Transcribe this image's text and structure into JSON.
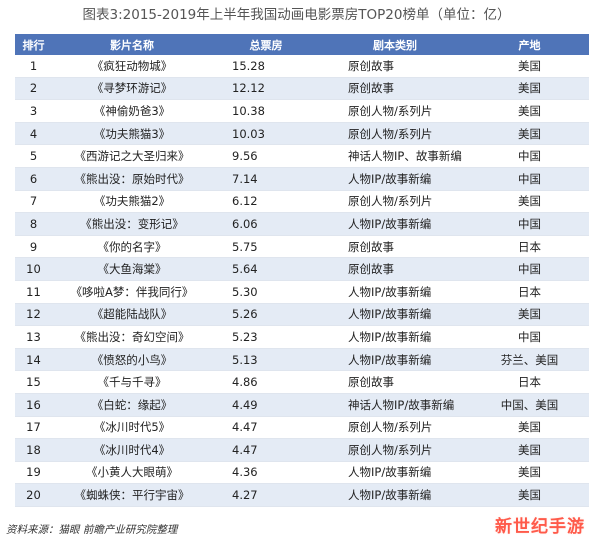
{
  "title": "图表3:2015-2019年上半年我国动画电影票房TOP20榜单（单位：亿）",
  "table": {
    "headers": [
      "排行",
      "影片名称",
      "总票房",
      "剧本类别",
      "产地"
    ],
    "rows": [
      {
        "rank": "1",
        "film": "《疯狂动物城》",
        "box": "15.28",
        "genre": "原创故事",
        "origin": "美国"
      },
      {
        "rank": "2",
        "film": "《寻梦环游记》",
        "box": "12.12",
        "genre": "原创故事",
        "origin": "美国"
      },
      {
        "rank": "3",
        "film": "《神偷奶爸3》",
        "box": "10.38",
        "genre": "原创人物/系列片",
        "origin": "美国"
      },
      {
        "rank": "4",
        "film": "《功夫熊猫3》",
        "box": "10.03",
        "genre": "原创人物/系列片",
        "origin": "美国"
      },
      {
        "rank": "5",
        "film": "《西游记之大圣归来》",
        "box": "9.56",
        "genre": "神话人物IP、故事新编",
        "origin": "中国"
      },
      {
        "rank": "6",
        "film": "《熊出没：原始时代》",
        "box": "7.14",
        "genre": "人物IP/故事新编",
        "origin": "中国"
      },
      {
        "rank": "7",
        "film": "《功夫熊猫2》",
        "box": "6.12",
        "genre": "原创人物/系列片",
        "origin": "美国"
      },
      {
        "rank": "8",
        "film": "《熊出没：变形记》",
        "box": "6.06",
        "genre": "人物IP/故事新编",
        "origin": "中国"
      },
      {
        "rank": "9",
        "film": "《你的名字》",
        "box": "5.75",
        "genre": "原创故事",
        "origin": "日本"
      },
      {
        "rank": "10",
        "film": "《大鱼海棠》",
        "box": "5.64",
        "genre": "原创故事",
        "origin": "中国"
      },
      {
        "rank": "11",
        "film": "《哆啦A梦：伴我同行》",
        "box": "5.30",
        "genre": "人物IP/故事新编",
        "origin": "日本"
      },
      {
        "rank": "12",
        "film": "《超能陆战队》",
        "box": "5.26",
        "genre": "人物IP/故事新编",
        "origin": "美国"
      },
      {
        "rank": "13",
        "film": "《熊出没：奇幻空间》",
        "box": "5.23",
        "genre": "人物IP/故事新编",
        "origin": "中国"
      },
      {
        "rank": "14",
        "film": "《愤怒的小鸟》",
        "box": "5.13",
        "genre": "人物IP/故事新编",
        "origin": "芬兰、美国"
      },
      {
        "rank": "15",
        "film": "《千与千寻》",
        "box": "4.86",
        "genre": "原创故事",
        "origin": "日本"
      },
      {
        "rank": "16",
        "film": "《白蛇：缘起》",
        "box": "4.49",
        "genre": "神话人物IP/故事新编",
        "origin": "中国、美国"
      },
      {
        "rank": "17",
        "film": "《冰川时代5》",
        "box": "4.47",
        "genre": "原创人物/系列片",
        "origin": "美国"
      },
      {
        "rank": "18",
        "film": "《冰川时代4》",
        "box": "4.47",
        "genre": "原创人物/系列片",
        "origin": "美国"
      },
      {
        "rank": "19",
        "film": "《小黄人大眼萌》",
        "box": "4.36",
        "genre": "人物IP/故事新编",
        "origin": "美国"
      },
      {
        "rank": "20",
        "film": "《蜘蛛侠：平行宇宙》",
        "box": "4.27",
        "genre": "人物IP/故事新编",
        "origin": "美国"
      }
    ]
  },
  "source": "资料来源：猫眼  前瞻产业研究院整理",
  "watermark": "新世纪手游",
  "colors": {
    "header_bg": "#4f74b8",
    "row_alt": "#e4ebf5",
    "watermark": "#ff5a4a"
  }
}
